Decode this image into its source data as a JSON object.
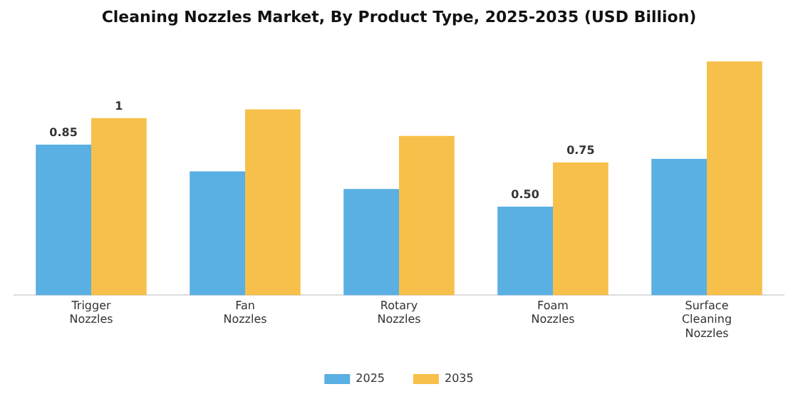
{
  "chart_data": {
    "type": "bar",
    "title": "Cleaning Nozzles Market, By Product Type, 2025-2035 (USD Billion)",
    "categories": [
      "Trigger Nozzles",
      "Fan Nozzles",
      "Rotary Nozzles",
      "Foam Nozzles",
      "Surface Cleaning Nozzles"
    ],
    "series": [
      {
        "name": "2025",
        "color": "#5aafe3",
        "values": [
          0.85,
          0.7,
          0.6,
          0.5,
          0.77
        ],
        "value_labels": [
          "0.85",
          null,
          null,
          "0.50",
          null
        ]
      },
      {
        "name": "2035",
        "color": "#f7c04a",
        "values": [
          1,
          1.05,
          0.9,
          0.75,
          1.32
        ],
        "value_labels": [
          "1",
          null,
          null,
          "0.75",
          null
        ]
      }
    ],
    "grid": false,
    "legend": "bottom",
    "tick_labels": "x"
  }
}
